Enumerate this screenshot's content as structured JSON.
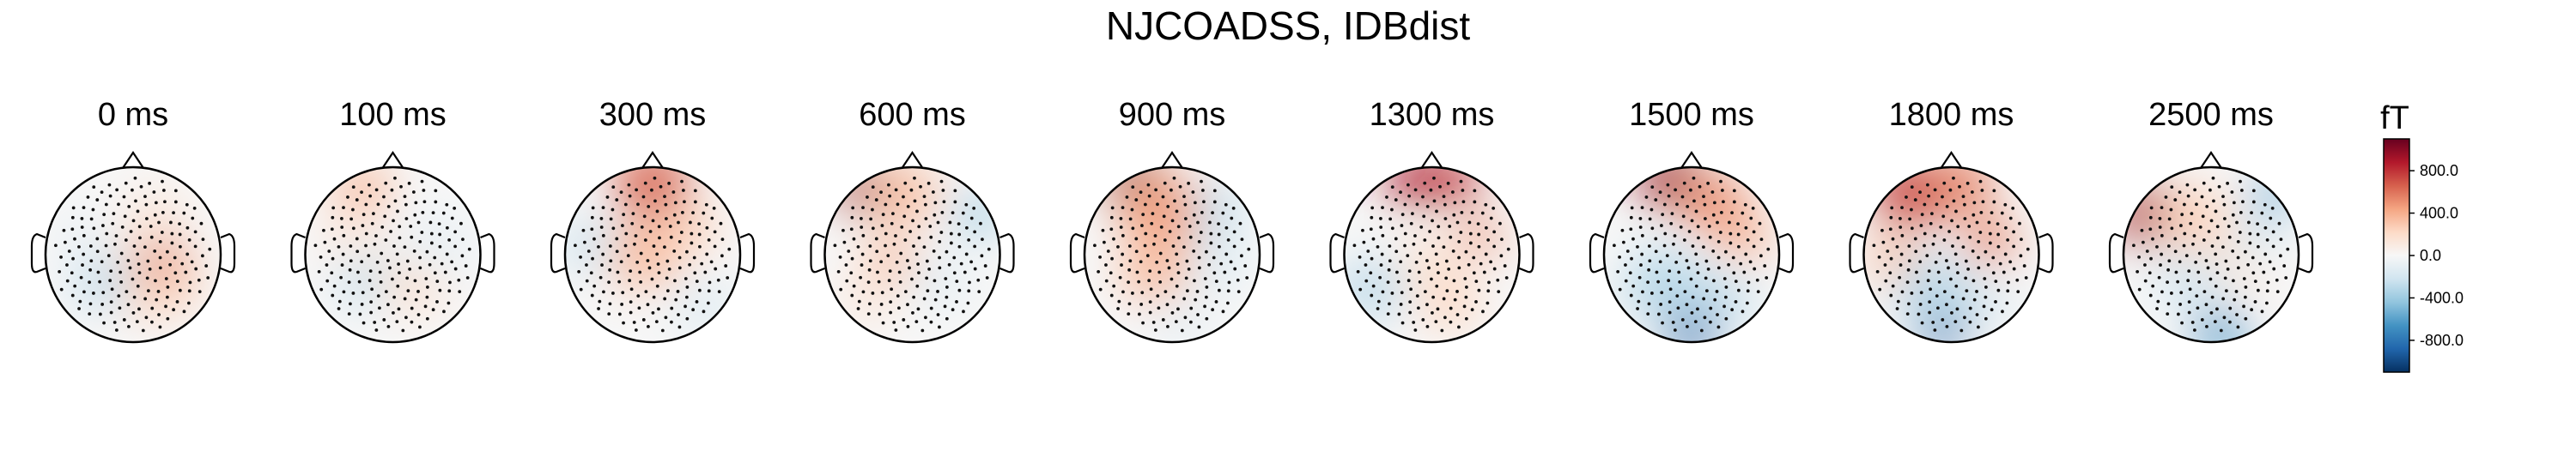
{
  "figure": {
    "title": "NJCOADSS, IDBdist"
  },
  "chart_data": {
    "type": "heatmap",
    "subtype": "topomap",
    "title": "NJCOADSS, IDBdist",
    "times": [
      "0 ms",
      "100 ms",
      "300 ms",
      "600 ms",
      "900 ms",
      "1300 ms",
      "1500 ms",
      "1800 ms",
      "2500 ms"
    ],
    "colorbar": {
      "unit": "fT",
      "ticks": [
        800.0,
        400.0,
        0.0,
        -400.0,
        -800.0
      ],
      "tick_labels": [
        "800.0",
        "400.0",
        "0.0",
        "-400.0",
        "-800.0"
      ],
      "range": [
        -1100,
        1100
      ],
      "colormap": "RdBu_r",
      "colors": [
        "#053061",
        "#2166ac",
        "#4393c3",
        "#92c5de",
        "#d1e5f0",
        "#f7f7f7",
        "#fddbc7",
        "#f4a582",
        "#d6604d",
        "#b2182b",
        "#67001f"
      ]
    },
    "maps": [
      {
        "time": "0 ms",
        "blobs": [
          {
            "x": 0.25,
            "y": 0.25,
            "value": 250,
            "r": 0.55
          },
          {
            "x": 0.35,
            "y": 0.05,
            "value": 650,
            "r": 0.22
          },
          {
            "x": -0.35,
            "y": 0.3,
            "value": -280,
            "r": 0.35
          },
          {
            "x": 0.25,
            "y": -0.45,
            "value": 120,
            "r": 0.4
          },
          {
            "x": -0.55,
            "y": -0.2,
            "value": -60,
            "r": 0.4
          }
        ]
      },
      {
        "time": "100 ms",
        "blobs": [
          {
            "x": -0.35,
            "y": -0.75,
            "value": 350,
            "r": 0.35
          },
          {
            "x": -0.3,
            "y": 0.3,
            "value": -250,
            "r": 0.35
          },
          {
            "x": 0.25,
            "y": 0.3,
            "value": 200,
            "r": 0.4
          },
          {
            "x": 0.5,
            "y": -0.1,
            "value": -80,
            "r": 0.45
          },
          {
            "x": -0.5,
            "y": -0.2,
            "value": 100,
            "r": 0.35
          }
        ]
      },
      {
        "time": "300 ms",
        "blobs": [
          {
            "x": 0.0,
            "y": -0.8,
            "value": 650,
            "r": 0.45
          },
          {
            "x": -0.1,
            "y": 0.0,
            "value": 350,
            "r": 0.45
          },
          {
            "x": 0.4,
            "y": -0.3,
            "value": 250,
            "r": 0.35
          },
          {
            "x": -0.75,
            "y": -0.1,
            "value": -220,
            "r": 0.35
          },
          {
            "x": 0.6,
            "y": 0.6,
            "value": -120,
            "r": 0.4
          }
        ]
      },
      {
        "time": "600 ms",
        "blobs": [
          {
            "x": -0.55,
            "y": -0.75,
            "value": 950,
            "r": 0.3
          },
          {
            "x": -0.1,
            "y": -0.7,
            "value": 350,
            "r": 0.4
          },
          {
            "x": 0.75,
            "y": -0.45,
            "value": -450,
            "r": 0.25
          },
          {
            "x": -0.25,
            "y": 0.05,
            "value": 350,
            "r": 0.3
          },
          {
            "x": 0.3,
            "y": 0.3,
            "value": -120,
            "r": 0.35
          },
          {
            "x": -0.5,
            "y": 0.5,
            "value": 120,
            "r": 0.35
          }
        ]
      },
      {
        "time": "900 ms",
        "blobs": [
          {
            "x": -0.4,
            "y": -0.8,
            "value": 1000,
            "r": 0.35
          },
          {
            "x": -0.1,
            "y": -0.5,
            "value": 450,
            "r": 0.5
          },
          {
            "x": -0.2,
            "y": 0.2,
            "value": 350,
            "r": 0.4
          },
          {
            "x": 0.5,
            "y": -0.5,
            "value": -300,
            "r": 0.3
          },
          {
            "x": 0.5,
            "y": 0.1,
            "value": -200,
            "r": 0.3
          },
          {
            "x": 0.1,
            "y": 0.75,
            "value": -100,
            "r": 0.35
          }
        ]
      },
      {
        "time": "1300 ms",
        "blobs": [
          {
            "x": -0.2,
            "y": -0.85,
            "value": 900,
            "r": 0.32
          },
          {
            "x": 0.25,
            "y": -0.85,
            "value": 800,
            "r": 0.3
          },
          {
            "x": 0.55,
            "y": -0.2,
            "value": 500,
            "r": 0.25
          },
          {
            "x": -0.7,
            "y": 0.4,
            "value": -280,
            "r": 0.4
          },
          {
            "x": 0.2,
            "y": 0.55,
            "value": 250,
            "r": 0.35
          },
          {
            "x": 0.0,
            "y": 0.1,
            "value": 150,
            "r": 0.4
          }
        ]
      },
      {
        "time": "1500 ms",
        "blobs": [
          {
            "x": -0.25,
            "y": -0.85,
            "value": 950,
            "r": 0.35
          },
          {
            "x": 0.25,
            "y": -0.6,
            "value": 500,
            "r": 0.4
          },
          {
            "x": 0.6,
            "y": -0.2,
            "value": 400,
            "r": 0.3
          },
          {
            "x": 0.0,
            "y": 0.9,
            "value": -800,
            "r": 0.3
          },
          {
            "x": -0.3,
            "y": 0.35,
            "value": -300,
            "r": 0.5
          },
          {
            "x": 0.4,
            "y": 0.5,
            "value": -250,
            "r": 0.35
          }
        ]
      },
      {
        "time": "1800 ms",
        "blobs": [
          {
            "x": -0.45,
            "y": -0.7,
            "value": 750,
            "r": 0.45
          },
          {
            "x": 0.1,
            "y": -0.8,
            "value": 550,
            "r": 0.4
          },
          {
            "x": 0.45,
            "y": -0.15,
            "value": 550,
            "r": 0.3
          },
          {
            "x": -0.65,
            "y": 0.05,
            "value": 300,
            "r": 0.35
          },
          {
            "x": -0.1,
            "y": 0.85,
            "value": -800,
            "r": 0.3
          },
          {
            "x": -0.2,
            "y": 0.4,
            "value": -300,
            "r": 0.45
          },
          {
            "x": 0.45,
            "y": 0.55,
            "value": -150,
            "r": 0.3
          }
        ]
      },
      {
        "time": "2500 ms",
        "blobs": [
          {
            "x": -0.7,
            "y": -0.45,
            "value": 900,
            "r": 0.4
          },
          {
            "x": -0.2,
            "y": -0.4,
            "value": 250,
            "r": 0.45
          },
          {
            "x": 0.7,
            "y": -0.65,
            "value": -550,
            "r": 0.25
          },
          {
            "x": 0.35,
            "y": 0.1,
            "value": 150,
            "r": 0.35
          },
          {
            "x": 0.1,
            "y": 0.9,
            "value": -650,
            "r": 0.3
          },
          {
            "x": -0.25,
            "y": 0.3,
            "value": -200,
            "r": 0.4
          },
          {
            "x": 0.5,
            "y": -0.15,
            "value": -150,
            "r": 0.3
          }
        ]
      }
    ]
  }
}
